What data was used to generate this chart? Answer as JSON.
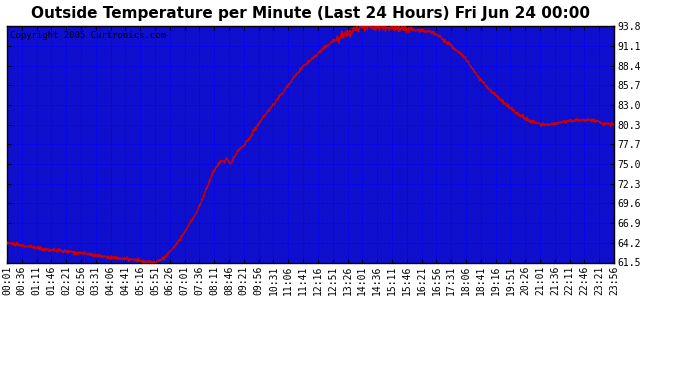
{
  "title": "Outside Temperature per Minute (Last 24 Hours) Fri Jun 24 00:00",
  "copyright": "Copyright 2005 Curtronics.com",
  "yticks": [
    61.5,
    64.2,
    66.9,
    69.6,
    72.3,
    75.0,
    77.7,
    80.3,
    83.0,
    85.7,
    88.4,
    91.1,
    93.8
  ],
  "xtick_labels": [
    "00:01",
    "00:36",
    "01:11",
    "01:46",
    "02:21",
    "02:56",
    "03:31",
    "04:06",
    "04:41",
    "05:16",
    "05:51",
    "06:26",
    "07:01",
    "07:36",
    "08:11",
    "08:46",
    "09:21",
    "09:56",
    "10:31",
    "11:06",
    "11:41",
    "12:16",
    "12:51",
    "13:26",
    "14:01",
    "14:36",
    "15:11",
    "15:46",
    "16:21",
    "16:56",
    "17:31",
    "18:06",
    "18:41",
    "19:16",
    "19:51",
    "20:26",
    "21:01",
    "21:36",
    "22:11",
    "22:46",
    "23:21",
    "23:56"
  ],
  "line_color": "#cc0000",
  "bg_color": "#1010cc",
  "title_fontsize": 11,
  "copyright_fontsize": 6.5,
  "tick_fontsize": 7,
  "ylim": [
    61.5,
    93.8
  ],
  "breakpoints_t": [
    0,
    35,
    70,
    105,
    140,
    175,
    210,
    245,
    280,
    310,
    316,
    330,
    345,
    351,
    370,
    395,
    420,
    451,
    466,
    476,
    486,
    496,
    511,
    516,
    521,
    526,
    531,
    541,
    551,
    561,
    576,
    591,
    611,
    631,
    651,
    676,
    706,
    736,
    766,
    796,
    811,
    826,
    846,
    866,
    886,
    906,
    926,
    946,
    966,
    986,
    1006,
    1026,
    1046,
    1066,
    1086,
    1116,
    1146,
    1176,
    1206,
    1236,
    1266,
    1296,
    1326,
    1356,
    1386,
    1416,
    1440
  ],
  "breakpoints_y": [
    64.2,
    63.8,
    63.5,
    63.2,
    63.0,
    62.8,
    62.5,
    62.2,
    62.0,
    61.8,
    61.7,
    61.6,
    61.5,
    61.5,
    62.0,
    63.5,
    65.5,
    68.5,
    70.5,
    72.0,
    73.5,
    74.5,
    75.5,
    75.3,
    75.8,
    75.5,
    75.2,
    76.0,
    77.0,
    77.5,
    78.5,
    80.0,
    81.5,
    83.0,
    84.5,
    86.5,
    88.5,
    90.0,
    91.5,
    92.5,
    93.0,
    93.5,
    93.8,
    93.7,
    93.8,
    93.6,
    93.5,
    93.4,
    93.3,
    93.2,
    93.0,
    92.5,
    91.5,
    90.5,
    89.5,
    87.0,
    85.0,
    83.5,
    82.0,
    81.0,
    80.3,
    80.5,
    80.8,
    81.0,
    81.0,
    80.5,
    80.3
  ]
}
